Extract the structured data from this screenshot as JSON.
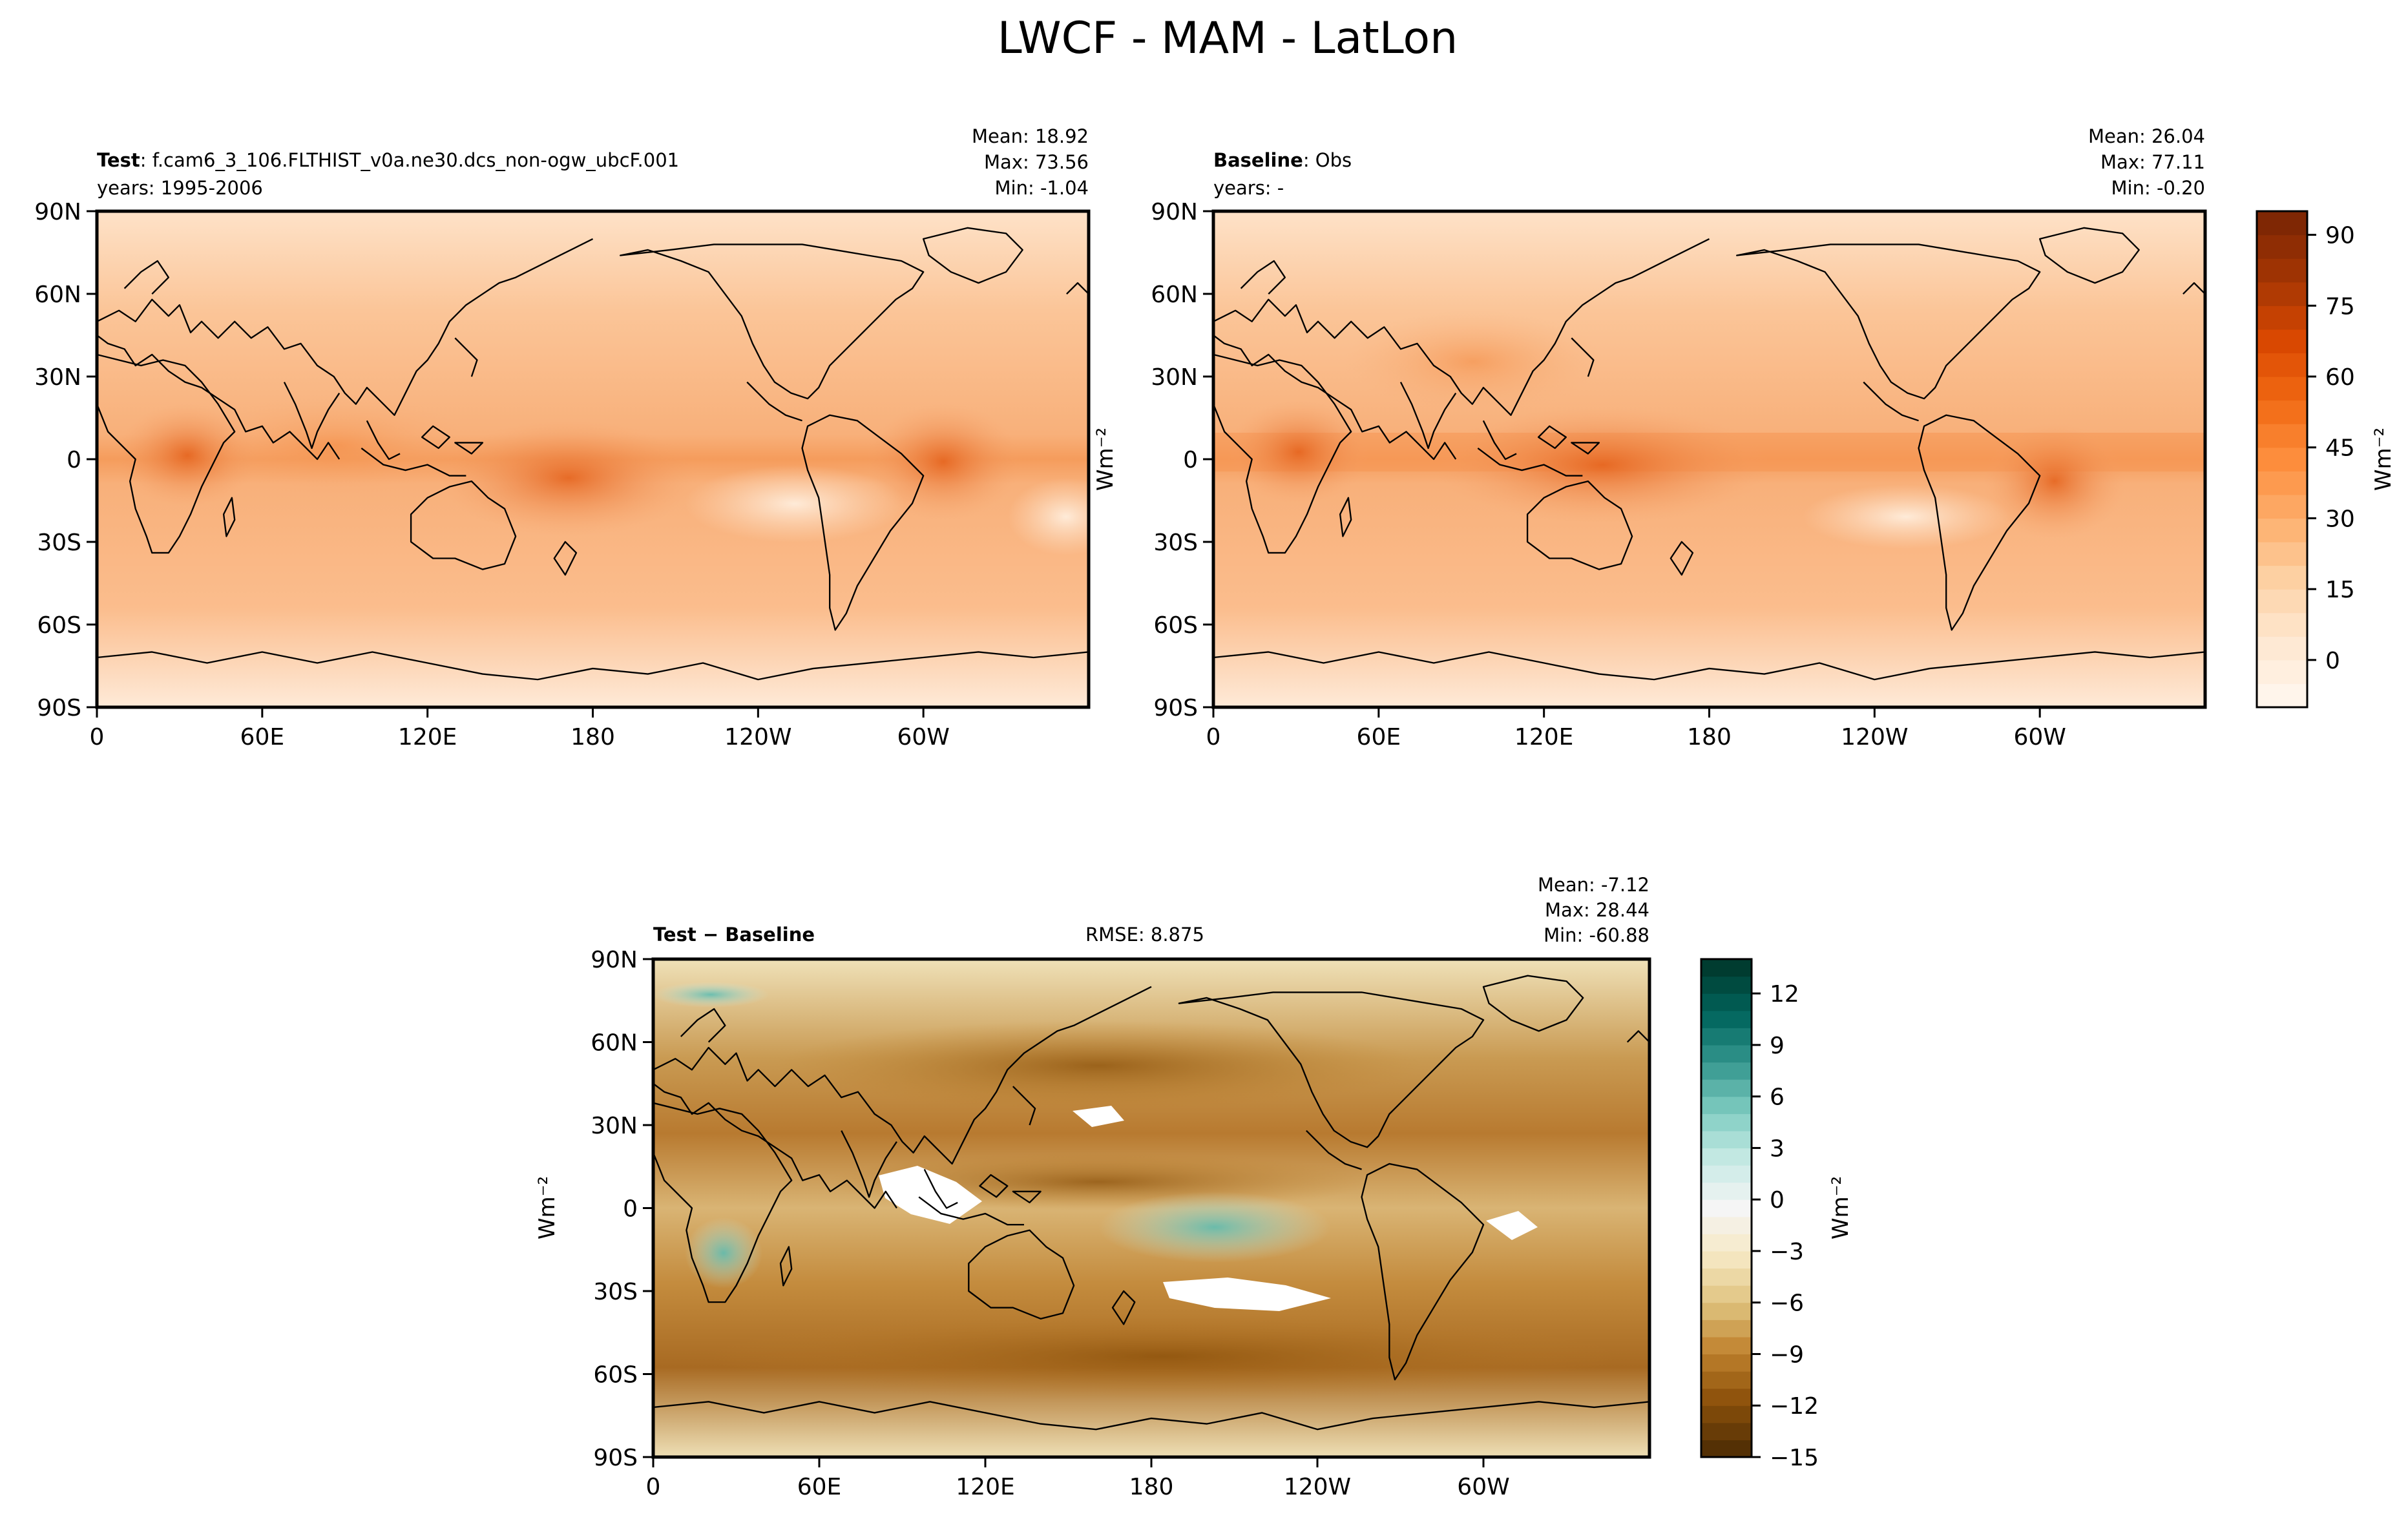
{
  "figure": {
    "title": "LWCF - MAM - LatLon"
  },
  "chart_data": [
    {
      "type": "heatmap",
      "id": "test",
      "title_bold": "Test",
      "title_rest": ": f.cam6_3_106.FLTHIST_v0a.ne30.dcs_non-ogw_ubcF.001",
      "subtitle": "years: 1995-2006",
      "stats": [
        "Mean: 18.92",
        "Max: 73.56",
        "Min: -1.04"
      ],
      "xlabel": "",
      "ylabel": "",
      "xticks": [
        "0",
        "60E",
        "120E",
        "180",
        "120W",
        "60W"
      ],
      "yticks": [
        "90N",
        "60N",
        "30N",
        "0",
        "30S",
        "60S",
        "90S"
      ],
      "xlim": [
        0,
        360
      ],
      "ylim": [
        -90,
        90
      ]
    },
    {
      "type": "heatmap",
      "id": "baseline",
      "title_bold": "Baseline",
      "title_rest": ": Obs",
      "subtitle": "years: -",
      "stats": [
        "Mean: 26.04",
        "Max: 77.11",
        "Min: -0.20"
      ],
      "xlabel": "",
      "ylabel": "Wm⁻²",
      "xticks": [
        "0",
        "60E",
        "120E",
        "180",
        "120W",
        "60W"
      ],
      "yticks": [
        "90N",
        "60N",
        "30N",
        "0",
        "30S",
        "60S",
        "90S"
      ],
      "xlim": [
        0,
        360
      ],
      "ylim": [
        -90,
        90
      ]
    },
    {
      "type": "heatmap",
      "id": "diff",
      "title_bold": "Test − Baseline",
      "rmse": "RMSE: 8.875",
      "stats": [
        "Mean: -7.12",
        "Max: 28.44",
        "Min: -60.88"
      ],
      "xlabel": "",
      "ylabel": "Wm⁻²",
      "xticks": [
        "0",
        "60E",
        "120E",
        "180",
        "120W",
        "60W"
      ],
      "yticks": [
        "90N",
        "60N",
        "30N",
        "0",
        "30S",
        "60S",
        "90S"
      ],
      "xlim": [
        0,
        360
      ],
      "ylim": [
        -90,
        90
      ]
    }
  ],
  "colorbars": {
    "main": {
      "label": "Wm⁻²",
      "ticks": [
        "90",
        "75",
        "60",
        "45",
        "30",
        "15",
        "0"
      ],
      "tick_values": [
        90,
        75,
        60,
        45,
        30,
        15,
        0
      ],
      "range": [
        -10,
        95
      ],
      "colors": [
        "#fff5eb",
        "#fee6ce",
        "#fdd0a2",
        "#fdae6b",
        "#fd8d3c",
        "#f16913",
        "#d94801",
        "#a63603",
        "#7f2704"
      ]
    },
    "diff": {
      "label": "Wm⁻²",
      "ticks": [
        "12",
        "9",
        "6",
        "3",
        "0",
        "−3",
        "−6",
        "−9",
        "−12",
        "−15"
      ],
      "tick_values": [
        12,
        9,
        6,
        3,
        0,
        -3,
        -6,
        -9,
        -12,
        -15
      ],
      "range": [
        -15,
        14
      ],
      "colors": [
        "#543005",
        "#8c510a",
        "#bf812d",
        "#dfc27d",
        "#f6e8c3",
        "#f5f5f5",
        "#c7eae5",
        "#80cdc1",
        "#35978f",
        "#01665e",
        "#003c30"
      ]
    }
  }
}
